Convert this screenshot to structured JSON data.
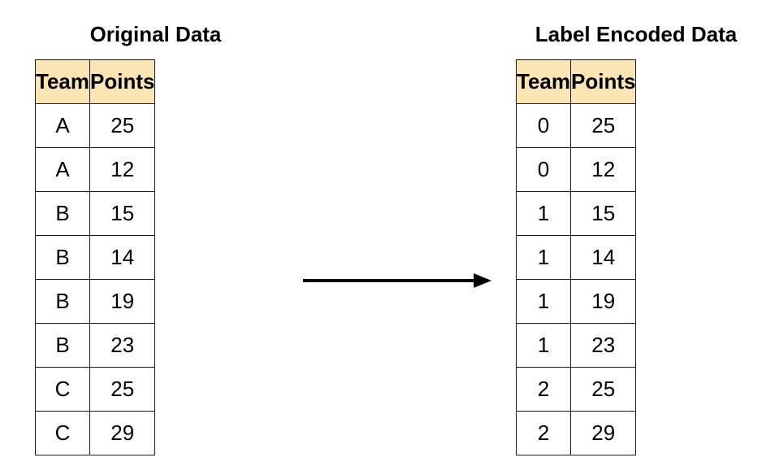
{
  "original": {
    "title": "Original Data",
    "headers": [
      "Team",
      "Points"
    ],
    "rows": [
      [
        "A",
        "25"
      ],
      [
        "A",
        "12"
      ],
      [
        "B",
        "15"
      ],
      [
        "B",
        "14"
      ],
      [
        "B",
        "19"
      ],
      [
        "B",
        "23"
      ],
      [
        "C",
        "25"
      ],
      [
        "C",
        "29"
      ]
    ]
  },
  "encoded": {
    "title": "Label Encoded Data",
    "headers": [
      "Team",
      "Points"
    ],
    "rows": [
      [
        "0",
        "25"
      ],
      [
        "0",
        "12"
      ],
      [
        "1",
        "15"
      ],
      [
        "1",
        "14"
      ],
      [
        "1",
        "19"
      ],
      [
        "1",
        "23"
      ],
      [
        "2",
        "25"
      ],
      [
        "2",
        "29"
      ]
    ]
  },
  "colors": {
    "header_fill": "#fbe5b6",
    "border": "#1a1a1a",
    "text": "#000000",
    "arrow": "#000000"
  },
  "arrow": {
    "icon": "right-arrow-icon"
  }
}
